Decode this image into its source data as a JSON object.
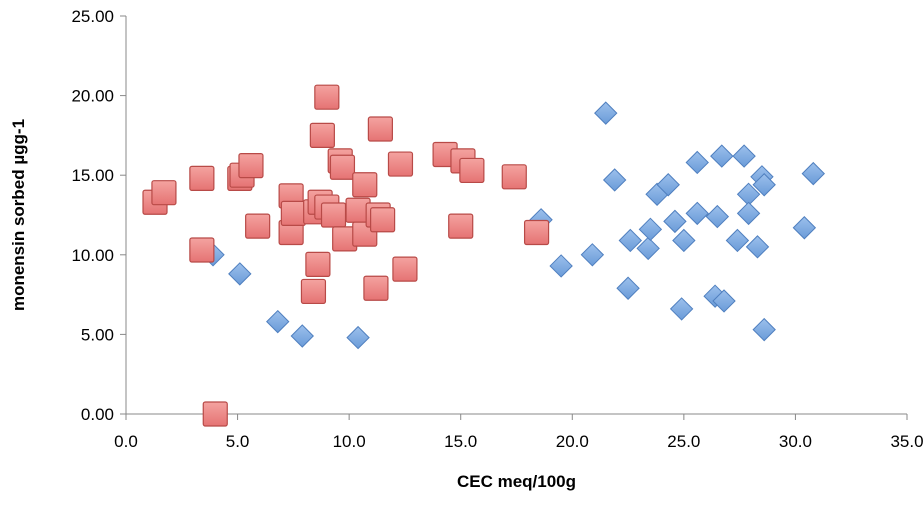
{
  "chart_data": {
    "type": "scatter",
    "title": "",
    "xlabel": "CEC meq/100g",
    "ylabel": "monensin sorbed µgg-1",
    "xlim": [
      0,
      35
    ],
    "ylim": [
      0,
      25
    ],
    "x_ticks": [
      "0.0",
      "5.0",
      "10.0",
      "15.0",
      "20.0",
      "25.0",
      "30.0",
      "35.0"
    ],
    "y_ticks": [
      "0.00",
      "5.00",
      "10.00",
      "15.00",
      "20.00",
      "25.00"
    ],
    "grid": false,
    "legend": "none",
    "series": [
      {
        "marker": "diamond",
        "color": "#6A9BD8",
        "stroke": "#4F7FBF",
        "points": [
          [
            3.9,
            10.0
          ],
          [
            5.1,
            8.8
          ],
          [
            6.8,
            5.8
          ],
          [
            7.9,
            4.9
          ],
          [
            10.4,
            4.8
          ],
          [
            18.6,
            12.2
          ],
          [
            19.5,
            9.3
          ],
          [
            20.9,
            10.0
          ],
          [
            21.5,
            18.9
          ],
          [
            21.9,
            14.7
          ],
          [
            22.5,
            7.9
          ],
          [
            22.6,
            10.9
          ],
          [
            23.4,
            10.4
          ],
          [
            23.5,
            11.6
          ],
          [
            23.8,
            13.8
          ],
          [
            24.3,
            14.4
          ],
          [
            24.6,
            12.1
          ],
          [
            24.9,
            6.6
          ],
          [
            25.0,
            10.9
          ],
          [
            25.6,
            12.6
          ],
          [
            25.6,
            15.8
          ],
          [
            26.4,
            7.4
          ],
          [
            26.5,
            12.4
          ],
          [
            26.7,
            16.2
          ],
          [
            26.8,
            7.1
          ],
          [
            27.4,
            10.9
          ],
          [
            27.7,
            16.2
          ],
          [
            27.9,
            13.8
          ],
          [
            27.9,
            12.6
          ],
          [
            28.3,
            10.5
          ],
          [
            28.5,
            14.9
          ],
          [
            28.6,
            14.4
          ],
          [
            28.6,
            5.3
          ],
          [
            30.4,
            11.7
          ],
          [
            30.8,
            15.1
          ]
        ]
      },
      {
        "marker": "square",
        "color": "#E57373",
        "stroke": "#B84A47",
        "points": [
          [
            1.3,
            13.3
          ],
          [
            1.7,
            13.9
          ],
          [
            3.4,
            14.8
          ],
          [
            3.4,
            10.3
          ],
          [
            4.0,
            0.0
          ],
          [
            5.1,
            14.8
          ],
          [
            5.2,
            15.0
          ],
          [
            5.6,
            15.6
          ],
          [
            5.9,
            11.8
          ],
          [
            7.4,
            13.7
          ],
          [
            7.4,
            11.4
          ],
          [
            7.5,
            12.6
          ],
          [
            8.4,
            7.7
          ],
          [
            8.5,
            12.7
          ],
          [
            8.6,
            9.4
          ],
          [
            8.7,
            13.3
          ],
          [
            8.8,
            17.5
          ],
          [
            9.0,
            19.9
          ],
          [
            9.0,
            13.0
          ],
          [
            9.3,
            12.5
          ],
          [
            9.6,
            15.9
          ],
          [
            9.7,
            15.5
          ],
          [
            9.8,
            11.0
          ],
          [
            10.4,
            12.8
          ],
          [
            10.7,
            14.4
          ],
          [
            10.7,
            11.3
          ],
          [
            11.2,
            7.9
          ],
          [
            11.3,
            12.5
          ],
          [
            11.4,
            17.9
          ],
          [
            11.5,
            12.2
          ],
          [
            12.3,
            15.7
          ],
          [
            12.5,
            9.1
          ],
          [
            14.3,
            16.3
          ],
          [
            15.1,
            15.9
          ],
          [
            15.5,
            15.3
          ],
          [
            15.0,
            11.8
          ],
          [
            17.4,
            14.9
          ],
          [
            18.4,
            11.4
          ]
        ]
      }
    ]
  }
}
